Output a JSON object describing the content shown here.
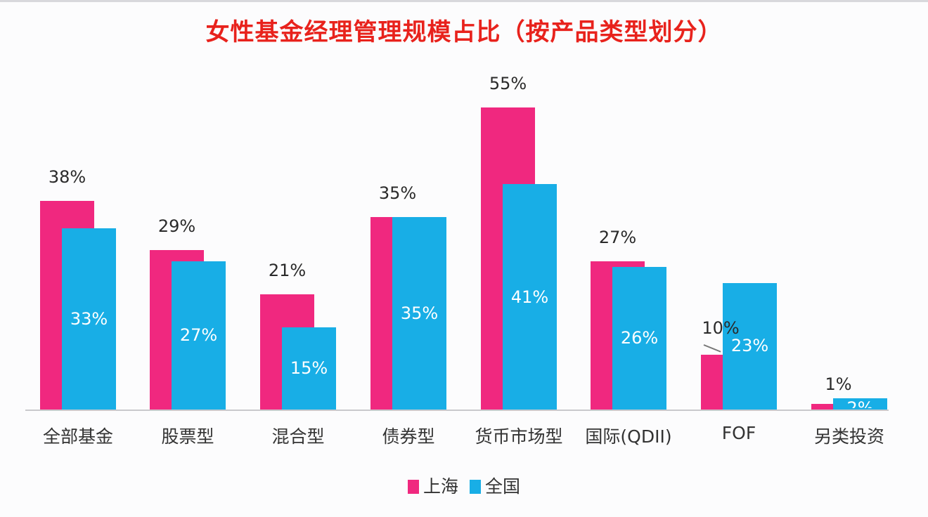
{
  "title": "女性基金经理管理规模占比（按产品类型划分）",
  "legend": [
    {
      "label": "上海",
      "color": "#f0287f"
    },
    {
      "label": "全国",
      "color": "#18aee6"
    }
  ],
  "chart_data": {
    "type": "bar",
    "title": "女性基金经理管理规模占比（按产品类型划分）",
    "xlabel": "",
    "ylabel": "",
    "ylim": [
      0,
      60
    ],
    "grid": false,
    "legend_position": "bottom",
    "categories": [
      "全部基金",
      "股票型",
      "混合型",
      "债券型",
      "货币市场型",
      "国际(QDII)",
      "FOF",
      "另类投资"
    ],
    "series": [
      {
        "name": "上海",
        "color": "#f0287f",
        "values": [
          38,
          29,
          21,
          35,
          55,
          27,
          10,
          1
        ]
      },
      {
        "name": "全国",
        "color": "#18aee6",
        "values": [
          33,
          27,
          15,
          35,
          41,
          26,
          23,
          2
        ]
      }
    ],
    "value_labels": {
      "上海": [
        "38%",
        "29%",
        "21%",
        "35%",
        "55%",
        "27%",
        "10%",
        "1%"
      ],
      "全国": [
        "33%",
        "27%",
        "15%",
        "35%",
        "41%",
        "26%",
        "23%",
        "2%"
      ]
    }
  }
}
